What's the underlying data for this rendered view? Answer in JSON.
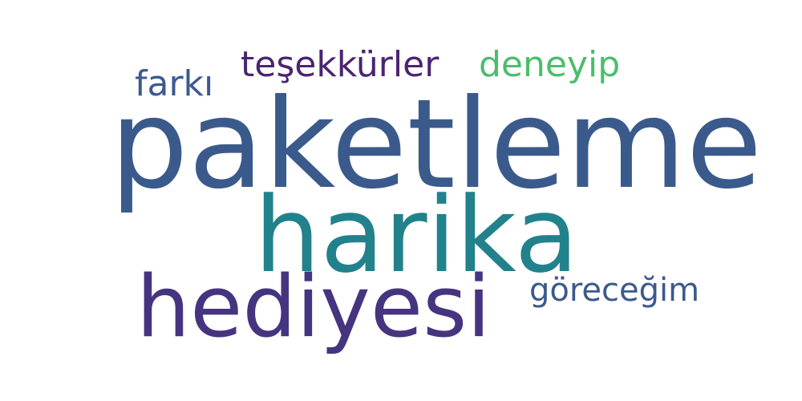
{
  "words": [
    {
      "text": "paketleme",
      "color": "#3b5a8c"
    },
    {
      "text": "harika",
      "color": "#22828c"
    },
    {
      "text": "hediyesi",
      "color": "#463480"
    },
    {
      "text": "teşekkürler",
      "color": "#4b2471"
    },
    {
      "text": "deneyip",
      "color": "#4cbd6b"
    },
    {
      "text": "farkı",
      "color": "#3c5a8e"
    },
    {
      "text": "göreceğim",
      "color": "#3b5a8c"
    }
  ]
}
